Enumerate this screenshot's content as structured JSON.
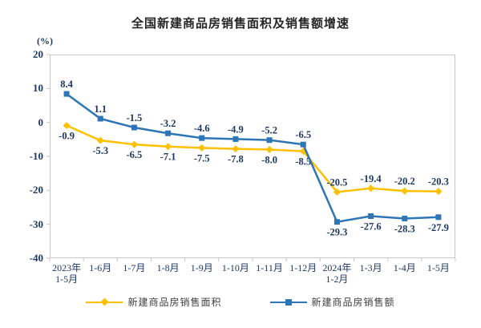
{
  "title": "全国新建商品房销售面积及销售额增速",
  "axis_unit": "(%)",
  "colors": {
    "series_area": "#FFC000",
    "series_amount": "#2E75B6",
    "label_text": "#1F3864",
    "axis_line": "#C6C6C6",
    "title_text": "#262626",
    "legend_text": "#3F3F3F"
  },
  "chart_data": {
    "type": "line",
    "categories": [
      "2023年\n1-5月",
      "1-6月",
      "1-7月",
      "1-8月",
      "1-9月",
      "1-10月",
      "1-11月",
      "1-12月",
      "2024年\n1-2月",
      "1-3月",
      "1-4月",
      "1-5月"
    ],
    "series": [
      {
        "name": "新建商品房销售面积",
        "color": "#FFC000",
        "marker": "diamond",
        "values": [
          -0.9,
          -5.3,
          -6.5,
          -7.1,
          -7.5,
          -7.8,
          -8.0,
          -8.5,
          -20.5,
          -19.4,
          -20.2,
          -20.3
        ],
        "point_labels": [
          "-0.9",
          "-5.3",
          "-6.5",
          "-7.1",
          "-7.5",
          "-7.8",
          "-8.0",
          "-8.5",
          "-20.5",
          "-19.4",
          "-20.2",
          "-20.3"
        ],
        "label_side": [
          "below",
          "below",
          "below",
          "below",
          "below",
          "below",
          "below",
          "below",
          "above",
          "above",
          "above",
          "above"
        ]
      },
      {
        "name": "新建商品房销售额",
        "color": "#2E75B6",
        "marker": "square",
        "values": [
          8.4,
          1.1,
          -1.5,
          -3.2,
          -4.6,
          -4.9,
          -5.2,
          -6.5,
          -29.3,
          -27.6,
          -28.3,
          -27.9
        ],
        "point_labels": [
          "8.4",
          "1.1",
          "-1.5",
          "-3.2",
          "-4.6",
          "-4.9",
          "-5.2",
          "-6.5",
          "-29.3",
          "-27.6",
          "-28.3",
          "-27.9"
        ],
        "label_side": [
          "above",
          "above",
          "above",
          "above",
          "above",
          "above",
          "above",
          "above",
          "below",
          "below",
          "below",
          "below"
        ]
      }
    ],
    "ylim": [
      -40,
      20
    ],
    "yticks": [
      "20",
      "10",
      "0",
      "-10",
      "-20",
      "-30",
      "-40"
    ],
    "grid": false,
    "legend_position": "bottom"
  }
}
